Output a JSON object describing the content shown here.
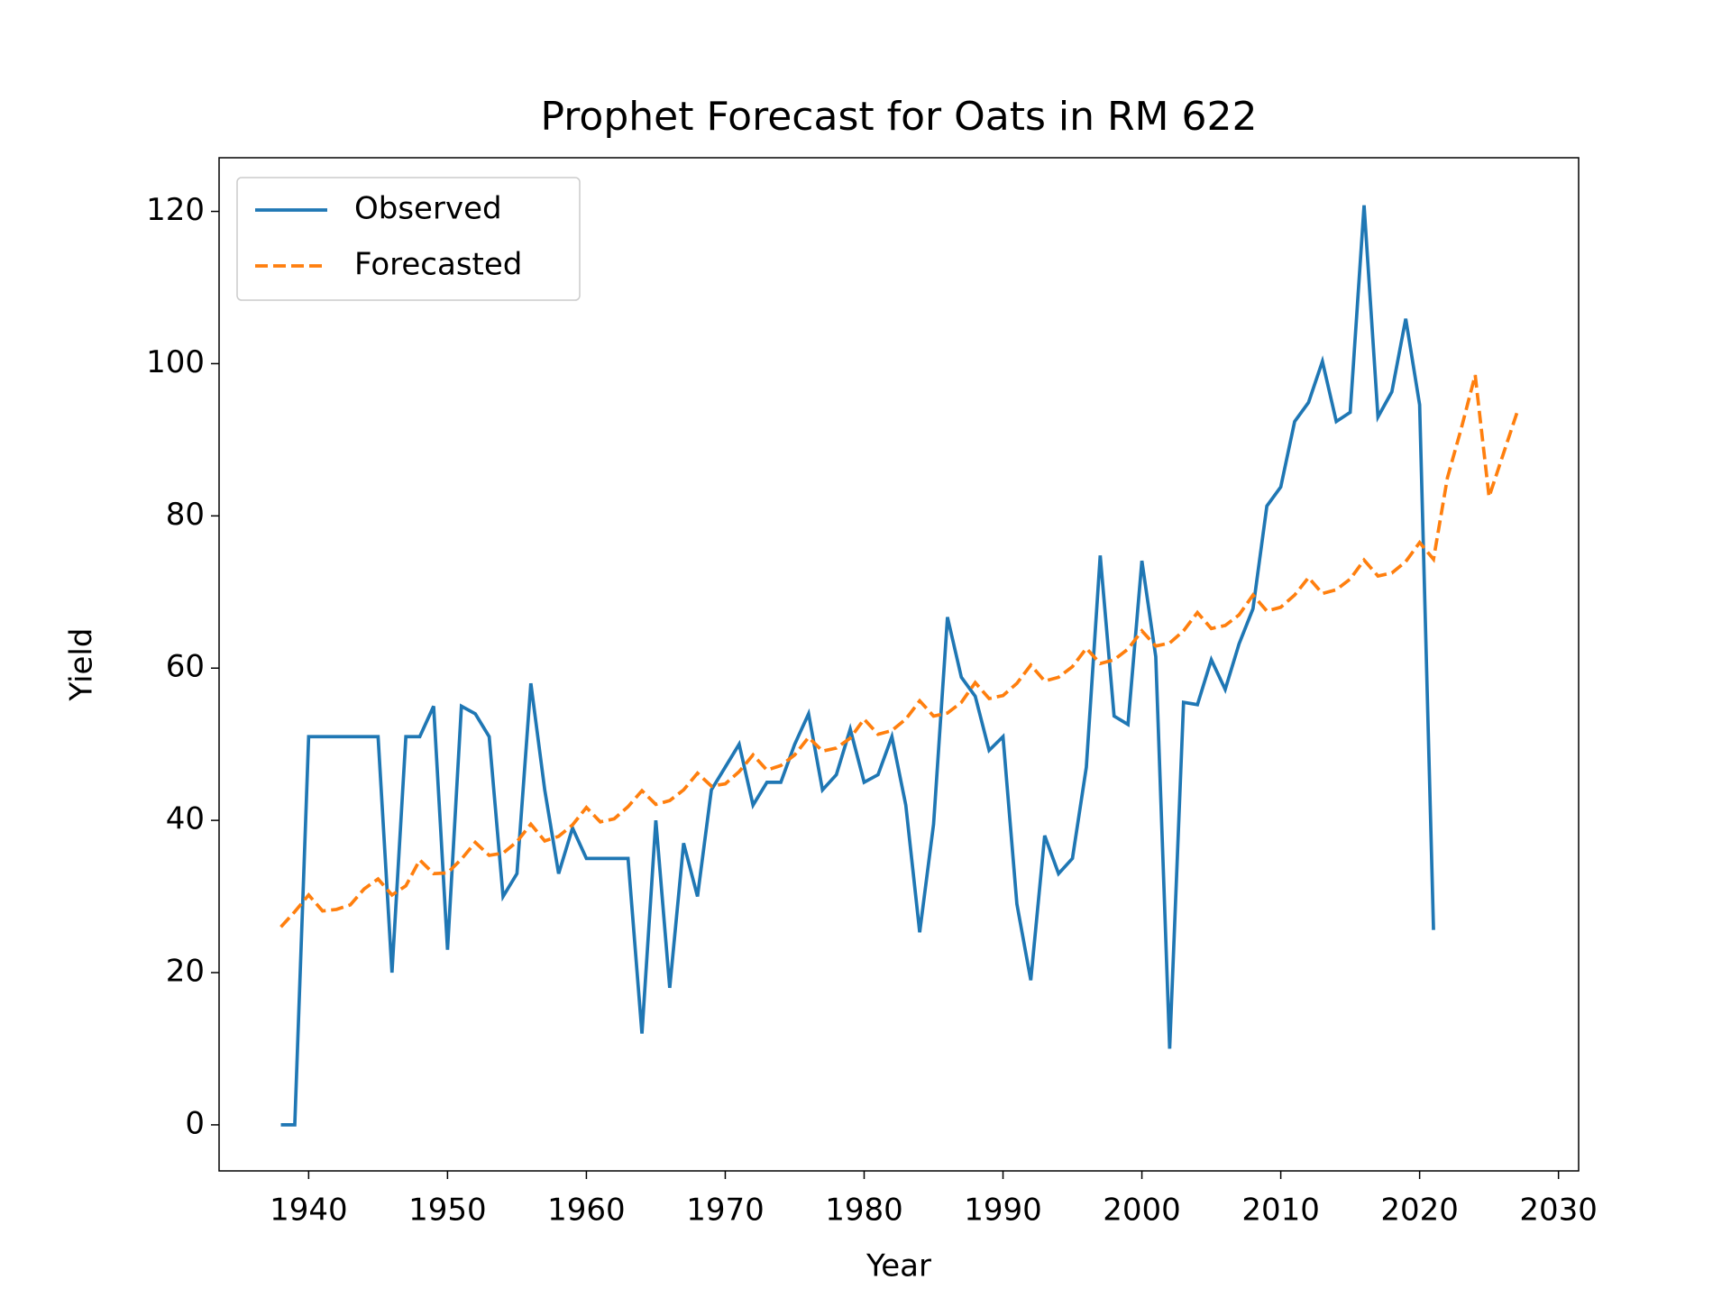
{
  "chart_data": {
    "type": "line",
    "title": "Prophet Forecast for Oats in RM 622",
    "x_label": "Year",
    "y_label": "Yield",
    "xlim": [
      1933.55,
      2031.45
    ],
    "xticks": [
      1940,
      1950,
      1960,
      1970,
      1980,
      1990,
      2000,
      2010,
      2020,
      2030
    ],
    "ylim": [
      -6.05,
      127.05
    ],
    "yticks": [
      0,
      20,
      40,
      60,
      80,
      100,
      120
    ],
    "grid": false,
    "legend": "upper-left",
    "series": [
      {
        "name": "Observed",
        "color": "#1f77b4",
        "dash": "solid",
        "x": [
          1938,
          1939,
          1940,
          1941,
          1942,
          1943,
          1944,
          1945,
          1946,
          1947,
          1948,
          1949,
          1950,
          1951,
          1952,
          1953,
          1954,
          1955,
          1956,
          1957,
          1958,
          1959,
          1960,
          1961,
          1962,
          1963,
          1964,
          1965,
          1966,
          1967,
          1968,
          1969,
          1970,
          1971,
          1972,
          1973,
          1974,
          1975,
          1976,
          1977,
          1978,
          1979,
          1980,
          1981,
          1982,
          1983,
          1984,
          1985,
          1986,
          1987,
          1988,
          1989,
          1990,
          1991,
          1992,
          1993,
          1994,
          1995,
          1996,
          1997,
          1998,
          1999,
          2000,
          2001,
          2002,
          2003,
          2004,
          2005,
          2006,
          2007,
          2008,
          2009,
          2010,
          2011,
          2012,
          2013,
          2014,
          2015,
          2016,
          2017,
          2018,
          2019,
          2020,
          2021
        ],
        "values": [
          0,
          0,
          51,
          51,
          51,
          51,
          51,
          51,
          20,
          51,
          51,
          55,
          23,
          55,
          54,
          51,
          30,
          33,
          58,
          44,
          33,
          39,
          35,
          35,
          35,
          35,
          12,
          40,
          18,
          37,
          30,
          44,
          47,
          50,
          42,
          45,
          45,
          50,
          54,
          44,
          46,
          52,
          45,
          46,
          51,
          42,
          25.3,
          39.5,
          66.7,
          58.8,
          56.3,
          49.2,
          51,
          29,
          19,
          38,
          33,
          35,
          47,
          74.8,
          53.7,
          52.6,
          74.1,
          61.5,
          10,
          55.5,
          55.2,
          61.1,
          57.2,
          63.2,
          67.8,
          81.3,
          83.8,
          92.4,
          94.9,
          100.3,
          92.4,
          93.6,
          120.8,
          93,
          96.3,
          105.9,
          94.6,
          25.6
        ]
      },
      {
        "name": "Forecasted",
        "color": "#ff7f0e",
        "dash": "dashed",
        "x": [
          1938,
          1939,
          1940,
          1941,
          1942,
          1943,
          1944,
          1945,
          1946,
          1947,
          1948,
          1949,
          1950,
          1951,
          1952,
          1953,
          1954,
          1955,
          1956,
          1957,
          1958,
          1959,
          1960,
          1961,
          1962,
          1963,
          1964,
          1965,
          1966,
          1967,
          1968,
          1969,
          1970,
          1971,
          1972,
          1973,
          1974,
          1975,
          1976,
          1977,
          1978,
          1979,
          1980,
          1981,
          1982,
          1983,
          1984,
          1985,
          1986,
          1987,
          1988,
          1989,
          1990,
          1991,
          1992,
          1993,
          1994,
          1995,
          1996,
          1997,
          1998,
          1999,
          2000,
          2001,
          2002,
          2003,
          2004,
          2005,
          2006,
          2007,
          2008,
          2009,
          2010,
          2011,
          2012,
          2013,
          2014,
          2015,
          2016,
          2017,
          2018,
          2019,
          2020,
          2021,
          2022,
          2023,
          2024,
          2025,
          2026,
          2027
        ],
        "values": [
          26,
          28,
          30.2,
          28.1,
          28.3,
          28.9,
          31,
          32.3,
          30.2,
          31.4,
          34.8,
          33,
          33.1,
          34.9,
          37.1,
          35.4,
          35.7,
          37.2,
          39.5,
          37.3,
          37.9,
          39.4,
          41.7,
          39.8,
          40.2,
          41.8,
          43.9,
          42.1,
          42.6,
          44,
          46.2,
          44.5,
          44.8,
          46.4,
          48.6,
          46.6,
          47.2,
          48.6,
          50.9,
          49.1,
          49.5,
          50.8,
          53.3,
          51.3,
          51.8,
          53.3,
          55.7,
          53.7,
          54.1,
          55.5,
          58.1,
          56,
          56.4,
          58,
          60.4,
          58.3,
          58.8,
          60.2,
          62.6,
          60.6,
          61.1,
          62.5,
          64.9,
          62.9,
          63.3,
          64.9,
          67.3,
          65.2,
          65.6,
          67,
          69.6,
          67.5,
          68,
          69.6,
          71.9,
          69.8,
          70.3,
          71.7,
          74.2,
          72.1,
          72.5,
          74,
          76.5,
          74.3,
          85,
          91.5,
          98.5,
          82.5,
          88,
          93.5
        ]
      }
    ]
  }
}
